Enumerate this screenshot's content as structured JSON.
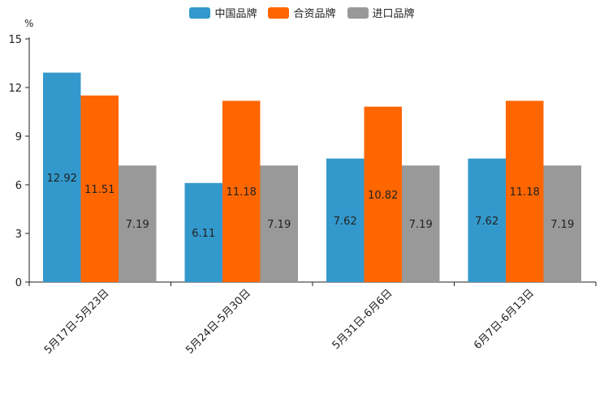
{
  "chart_data": {
    "type": "bar",
    "unit_label": "%",
    "categories": [
      "5月17日-5月23日",
      "5月24日-5月30日",
      "5月31日-6月6日",
      "6月7日-6月13日"
    ],
    "series": [
      {
        "name": "中国品牌",
        "color": "#3399cc",
        "values": [
          12.92,
          6.11,
          7.62,
          7.62
        ]
      },
      {
        "name": "合资品牌",
        "color": "#ff6600",
        "values": [
          11.51,
          11.18,
          10.82,
          11.18
        ]
      },
      {
        "name": "进口品牌",
        "color": "#999999",
        "values": [
          7.19,
          7.19,
          7.19,
          7.19
        ]
      }
    ],
    "ylim": [
      0,
      15
    ],
    "yticks": [
      0,
      3,
      6,
      9,
      12,
      15
    ],
    "legend_position": "top-center",
    "grid": false
  }
}
